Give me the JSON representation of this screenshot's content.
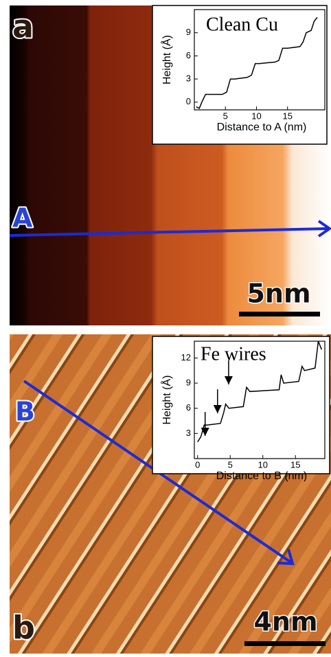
{
  "figure": {
    "panel_a": "a",
    "marker_a": "A",
    "scale_a": "5nm",
    "panel_b": "b",
    "marker_b": "B",
    "scale_b": "4nm"
  },
  "chart_data": [
    {
      "type": "line",
      "title": "Clean Cu",
      "x_label": "Distance to A (nm)",
      "y_label": "Height (Å)",
      "x": [
        0.3,
        0.8,
        1.2,
        1.8,
        2.5,
        4.5,
        5.2,
        5.8,
        6.5,
        8.5,
        9.2,
        9.8,
        10.5,
        13,
        13.6,
        14.2,
        15,
        17,
        17.5,
        18,
        18.8,
        19.3,
        19.8
      ],
      "values": [
        -0.6,
        -0.8,
        0,
        1,
        1,
        1,
        1.3,
        3,
        3,
        3.2,
        3.5,
        5,
        5,
        5.2,
        5.4,
        7,
        7,
        7.2,
        7.8,
        9,
        9.3,
        10.5,
        11
      ],
      "color": "#000000",
      "xlim": [
        0,
        21
      ],
      "ylim": [
        -1,
        12
      ],
      "xticks": [
        5,
        10,
        15
      ],
      "yticks": [
        0,
        3,
        6,
        9
      ]
    },
    {
      "type": "line",
      "title": "Fe wires",
      "x_label": "Distance to B (nm)",
      "y_label": "Height (Å)",
      "x": [
        0,
        0.5,
        1,
        1.5,
        3.5,
        4,
        4.3,
        4.8,
        7,
        7.5,
        8,
        12.5,
        12.8,
        13.2,
        15.5,
        16,
        16.4,
        18,
        18.5,
        19
      ],
      "values": [
        2,
        2.6,
        4,
        4,
        4.2,
        5.5,
        6.5,
        6,
        6.2,
        8.5,
        8,
        8.2,
        10,
        9,
        9.2,
        11,
        10.5,
        10.8,
        14,
        13
      ],
      "color": "#000000",
      "xlim": [
        -0.5,
        19.5
      ],
      "ylim": [
        0,
        14
      ],
      "xticks": [
        0,
        5,
        10,
        15
      ],
      "yticks": [
        3,
        6,
        9,
        12
      ]
    }
  ]
}
